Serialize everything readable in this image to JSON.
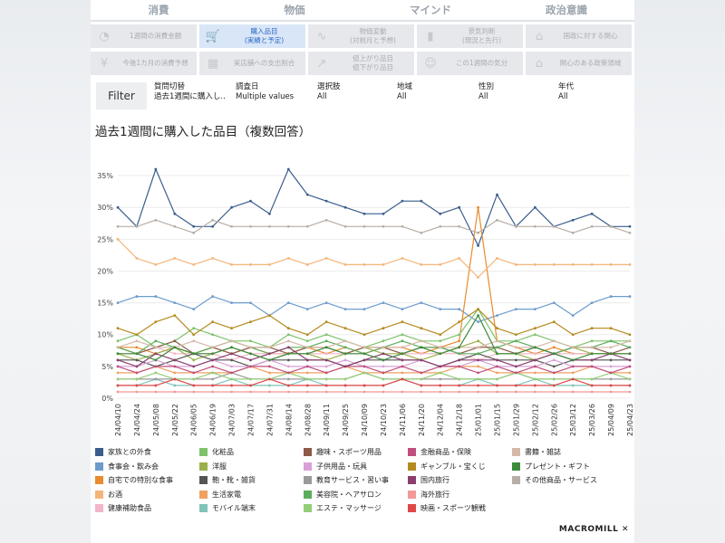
{
  "tabs": [
    {
      "label": "消費",
      "active": true
    },
    {
      "label": "物価",
      "active": false
    },
    {
      "label": "マインド",
      "active": false
    },
    {
      "label": "政治意識",
      "active": false
    }
  ],
  "subtabs": [
    {
      "label": "1週間の消費金額",
      "icon": "wallet-icon",
      "glyph": "◔",
      "active": false
    },
    {
      "label": "購入品目\n(実績と予定)",
      "icon": "cart-icon",
      "glyph": "🛒",
      "active": true
    },
    {
      "label": "物価変動\n(対前月と予想)",
      "icon": "line-chart-icon",
      "glyph": "∿",
      "active": false
    },
    {
      "label": "景気判断\n(現況と先行)",
      "icon": "bar-chart-icon",
      "glyph": "▮",
      "active": false
    },
    {
      "label": "国政に対する関心",
      "icon": "parliament-icon",
      "glyph": "⌂",
      "active": false
    },
    {
      "label": "今後1カ月の消費予想",
      "icon": "yen-coin-icon",
      "glyph": "¥",
      "active": false
    },
    {
      "label": "実店舗への支出割合",
      "icon": "store-icon",
      "glyph": "▦",
      "active": false
    },
    {
      "label": "値上がり品目\n値下がり品目",
      "icon": "trend-icon",
      "glyph": "↗",
      "active": false
    },
    {
      "label": "この1週間の気分",
      "icon": "smile-icon",
      "glyph": "☺",
      "active": false
    },
    {
      "label": "関心のある政策領域",
      "icon": "building-icon",
      "glyph": "⌂",
      "active": false
    }
  ],
  "filter": {
    "button_label": "Filter",
    "columns": [
      {
        "label": "質問切替",
        "value": "過去1週間に購入し.."
      },
      {
        "label": "調査日",
        "value": "Multiple values"
      },
      {
        "label": "選択肢",
        "value": "All"
      },
      {
        "label": "地域",
        "value": "All"
      },
      {
        "label": "性別",
        "value": "All"
      },
      {
        "label": "年代",
        "value": "All"
      }
    ]
  },
  "brand": "MACROMILL",
  "chart_data": {
    "type": "line",
    "title": "過去1週間に購入した品目（複数回答）",
    "ylim": [
      0,
      37
    ],
    "yticks": [
      "0%",
      "5%",
      "10%",
      "15%",
      "20%",
      "25%",
      "30%",
      "35%"
    ],
    "categories": [
      "24/04/10",
      "24/04/24",
      "24/05/08",
      "24/05/22",
      "24/06/05",
      "24/06/19",
      "24/07/03",
      "24/07/17",
      "24/07/31",
      "24/08/14",
      "24/08/28",
      "24/09/11",
      "24/09/25",
      "24/10/09",
      "24/10/23",
      "24/11/06",
      "24/11/20",
      "24/12/04",
      "24/12/18",
      "25/01/01",
      "25/01/15",
      "25/01/29",
      "25/02/12",
      "25/02/26",
      "25/03/12",
      "25/03/26",
      "25/04/09",
      "25/04/23"
    ],
    "series": [
      {
        "name": "家族との外食",
        "color": "#3a5d8c",
        "values": [
          30,
          27,
          36,
          29,
          27,
          27,
          30,
          31,
          29,
          36,
          32,
          31,
          30,
          29,
          29,
          31,
          31,
          29,
          30,
          24,
          32,
          27,
          30,
          27,
          28,
          29,
          27,
          27
        ]
      },
      {
        "name": "食事会・飲み会",
        "color": "#6d9ccc",
        "values": [
          15,
          16,
          16,
          15,
          14,
          16,
          15,
          15,
          13,
          15,
          14,
          15,
          14,
          14,
          15,
          14,
          15,
          14,
          14,
          12,
          13,
          14,
          14,
          15,
          13,
          15,
          16,
          16
        ]
      },
      {
        "name": "自宅での特別な食事",
        "color": "#e98b2e",
        "values": [
          8,
          8,
          7,
          8,
          7,
          8,
          7,
          8,
          7,
          7,
          8,
          7,
          8,
          7,
          8,
          8,
          7,
          8,
          9,
          30,
          9,
          8,
          7,
          8,
          7,
          7,
          7,
          7
        ]
      },
      {
        "name": "お酒",
        "color": "#f4b57a",
        "values": [
          25,
          22,
          21,
          22,
          21,
          22,
          21,
          21,
          21,
          22,
          21,
          22,
          21,
          21,
          21,
          22,
          21,
          21,
          22,
          19,
          22,
          21,
          21,
          21,
          21,
          21,
          21,
          21
        ]
      },
      {
        "name": "健康補助食品",
        "color": "#f2b6c9",
        "values": [
          7,
          7,
          8,
          7,
          7,
          7,
          6,
          7,
          7,
          7,
          7,
          7,
          7,
          7,
          8,
          7,
          7,
          7,
          7,
          6,
          7,
          7,
          7,
          7,
          7,
          7,
          7,
          7
        ]
      },
      {
        "name": "化粧品",
        "color": "#7ec26a",
        "values": [
          9,
          10,
          8,
          9,
          11,
          10,
          9,
          9,
          8,
          10,
          9,
          10,
          9,
          8,
          9,
          10,
          9,
          9,
          10,
          14,
          9,
          9,
          10,
          9,
          8,
          9,
          9,
          9
        ]
      },
      {
        "name": "洋服",
        "color": "#9ab04a",
        "values": [
          7,
          6,
          7,
          8,
          6,
          7,
          8,
          7,
          6,
          7,
          7,
          6,
          7,
          8,
          7,
          7,
          6,
          7,
          8,
          9,
          7,
          7,
          6,
          7,
          8,
          7,
          7,
          7
        ]
      },
      {
        "name": "鞄・靴・雑貨",
        "color": "#555555",
        "values": [
          6,
          6,
          5,
          6,
          7,
          6,
          6,
          5,
          6,
          6,
          6,
          6,
          5,
          6,
          6,
          6,
          6,
          5,
          6,
          7,
          6,
          6,
          6,
          5,
          6,
          6,
          6,
          6
        ]
      },
      {
        "name": "生活家電",
        "color": "#f0a060",
        "values": [
          4,
          4,
          5,
          4,
          4,
          4,
          4,
          5,
          4,
          4,
          4,
          4,
          5,
          4,
          4,
          4,
          4,
          4,
          5,
          5,
          4,
          4,
          4,
          4,
          4,
          5,
          4,
          4
        ]
      },
      {
        "name": "モバイル端末",
        "color": "#7fc4b8",
        "values": [
          2,
          2,
          3,
          2,
          2,
          2,
          3,
          2,
          2,
          2,
          3,
          2,
          2,
          2,
          2,
          3,
          2,
          2,
          2,
          3,
          2,
          2,
          3,
          2,
          2,
          2,
          2,
          2
        ]
      },
      {
        "name": "趣味・スポーツ用品",
        "color": "#8c5a46",
        "values": [
          8,
          7,
          8,
          9,
          7,
          8,
          7,
          8,
          8,
          7,
          8,
          8,
          7,
          8,
          8,
          7,
          8,
          8,
          7,
          8,
          8,
          7,
          8,
          7,
          8,
          8,
          7,
          8
        ]
      },
      {
        "name": "子供用品・玩具",
        "color": "#d9a0d8",
        "values": [
          5,
          5,
          6,
          5,
          5,
          6,
          5,
          5,
          6,
          5,
          5,
          5,
          6,
          5,
          5,
          5,
          6,
          5,
          5,
          6,
          5,
          5,
          5,
          6,
          5,
          5,
          5,
          5
        ]
      },
      {
        "name": "教育サービス・習い事",
        "color": "#9a9a9a",
        "values": [
          3,
          3,
          3,
          3,
          3,
          3,
          4,
          3,
          3,
          3,
          3,
          3,
          3,
          4,
          3,
          3,
          3,
          3,
          3,
          3,
          3,
          4,
          3,
          3,
          3,
          3,
          3,
          3
        ]
      },
      {
        "name": "美容院・ヘアサロン",
        "color": "#5cae5c",
        "values": [
          8,
          7,
          9,
          8,
          7,
          8,
          9,
          8,
          7,
          8,
          8,
          9,
          8,
          7,
          8,
          9,
          8,
          8,
          7,
          7,
          8,
          9,
          8,
          7,
          8,
          8,
          9,
          8
        ]
      },
      {
        "name": "エステ・マッサージ",
        "color": "#93cf78",
        "values": [
          3,
          3,
          4,
          3,
          3,
          4,
          3,
          3,
          3,
          4,
          3,
          3,
          3,
          4,
          3,
          3,
          3,
          4,
          3,
          3,
          3,
          4,
          3,
          3,
          3,
          3,
          4,
          3
        ]
      },
      {
        "name": "金融商品・保険",
        "color": "#c04f7d",
        "values": [
          5,
          4,
          5,
          5,
          4,
          5,
          4,
          5,
          5,
          4,
          5,
          4,
          5,
          5,
          4,
          5,
          4,
          5,
          5,
          4,
          5,
          4,
          5,
          4,
          5,
          5,
          4,
          5
        ]
      },
      {
        "name": "ギャンブル・宝くじ",
        "color": "#b58a1e",
        "values": [
          11,
          10,
          12,
          13,
          10,
          12,
          11,
          12,
          13,
          11,
          10,
          12,
          11,
          10,
          11,
          12,
          11,
          10,
          12,
          14,
          11,
          10,
          11,
          12,
          10,
          11,
          11,
          10
        ]
      },
      {
        "name": "国内旅行",
        "color": "#8a3f6e",
        "values": [
          6,
          5,
          7,
          6,
          5,
          6,
          7,
          6,
          7,
          8,
          6,
          6,
          5,
          6,
          7,
          6,
          6,
          5,
          6,
          6,
          6,
          5,
          6,
          7,
          6,
          6,
          7,
          6
        ]
      },
      {
        "name": "海外旅行",
        "color": "#f39a98",
        "values": [
          1,
          1,
          1,
          1,
          1,
          1,
          1,
          1,
          1,
          1,
          1,
          1,
          1,
          1,
          1,
          1,
          1,
          1,
          1,
          1,
          1,
          1,
          1,
          1,
          1,
          1,
          1,
          1
        ]
      },
      {
        "name": "映画・スポーツ観戦",
        "color": "#e04848",
        "values": [
          2,
          2,
          2,
          3,
          2,
          2,
          2,
          2,
          3,
          2,
          2,
          2,
          2,
          2,
          2,
          3,
          2,
          2,
          2,
          2,
          2,
          2,
          2,
          2,
          3,
          2,
          2,
          2
        ]
      },
      {
        "name": "書籍・雑誌",
        "color": "#d6b8a8",
        "values": [
          8,
          9,
          8,
          8,
          9,
          8,
          9,
          8,
          8,
          9,
          8,
          8,
          9,
          8,
          8,
          8,
          9,
          8,
          8,
          8,
          9,
          8,
          8,
          9,
          8,
          8,
          8,
          9
        ]
      },
      {
        "name": "プレゼント・ギフト",
        "color": "#3c8a3c",
        "values": [
          7,
          7,
          6,
          8,
          7,
          7,
          8,
          7,
          6,
          7,
          7,
          8,
          7,
          7,
          6,
          7,
          8,
          7,
          8,
          13,
          7,
          7,
          8,
          7,
          6,
          7,
          7,
          7
        ]
      },
      {
        "name": "その他商品・サービス",
        "color": "#b8aea6",
        "values": [
          27,
          27,
          28,
          27,
          26,
          28,
          27,
          27,
          27,
          27,
          27,
          28,
          27,
          27,
          27,
          27,
          26,
          27,
          27,
          26,
          28,
          27,
          27,
          27,
          26,
          27,
          27,
          26
        ]
      }
    ]
  }
}
